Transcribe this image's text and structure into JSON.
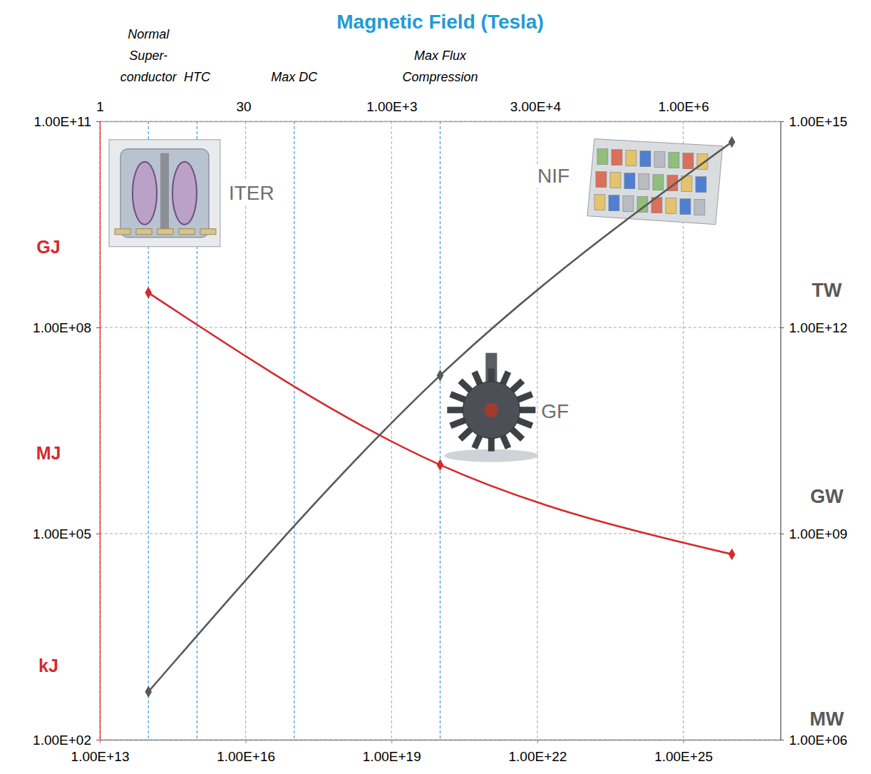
{
  "chart_data": {
    "type": "line",
    "title": "Magnetic Field (Tesla)",
    "log": true,
    "grid": true,
    "x": [
      100000000000000.0,
      1e+20,
      1e+26
    ],
    "xlim": [
      10000000000000.0,
      1e+27
    ],
    "xticks": [
      {
        "value": 10000000000000.0,
        "label": "1.00E+13"
      },
      {
        "value": 1e+16,
        "label": "1.00E+16"
      },
      {
        "value": 1e+19,
        "label": "1.00E+19"
      },
      {
        "value": 1e+22,
        "label": "1.00E+22"
      },
      {
        "value": 1e+25,
        "label": "1.00E+25"
      }
    ],
    "x2lim": [
      1,
      10000000.0
    ],
    "x2ticks": [
      1,
      30,
      {
        "value": 1000,
        "label": "1.00E+3"
      },
      {
        "value": 30000,
        "label": "3.00E+4"
      },
      {
        "value": 1000000,
        "label": "1.00E+6"
      }
    ],
    "ylim": [
      100,
      100000000000.0
    ],
    "yticks": [
      {
        "value": 100,
        "label": "1.00E+02"
      },
      {
        "value": 100000,
        "label": "1.00E+05"
      },
      {
        "value": 100000000,
        "label": "1.00E+08"
      },
      {
        "value": 100000000000.0,
        "label": "1.00E+11"
      }
    ],
    "y2lim": [
      1000000,
      1000000000000000.0
    ],
    "y2ticks": [
      {
        "value": 1000000,
        "label": "1.00E+06"
      },
      {
        "value": 1000000000,
        "label": "1.00E+09"
      },
      {
        "value": 1000000000000.0,
        "label": "1.00E+12"
      },
      {
        "value": 1000000000000000.0,
        "label": "1.00E+15"
      }
    ],
    "y_unit_labels": [
      {
        "value": 1500000000,
        "label": "GJ"
      },
      {
        "value": 1500000,
        "label": "MJ"
      },
      {
        "value": 1200,
        "label": "kJ"
      }
    ],
    "y2_unit_labels": [
      {
        "value": 3500000000000,
        "label": "TW"
      },
      {
        "value": 3500000000,
        "label": "GW"
      },
      {
        "value": 2000000,
        "label": "MW"
      }
    ],
    "reference_lines": [
      {
        "x": 100000000000000.0,
        "label": "Normal Super-conductor"
      },
      {
        "x": 1000000000000000.0,
        "label": "HTC"
      },
      {
        "x": 1e+17,
        "label": "Max DC"
      },
      {
        "x": 1e+20,
        "label": "Max Flux Compression"
      }
    ],
    "annotations": [
      {
        "text": "ITER",
        "x": 4500000000000000.0,
        "y": 9000000000
      },
      {
        "text": "NIF",
        "x": 1e+22,
        "y": 16000000000
      },
      {
        "text": "GF",
        "x": 1.2e+22,
        "y": 6000000
      }
    ],
    "series": [
      {
        "color": "#d42a30",
        "marker": "diamond",
        "values": [
          320000000,
          1000000,
          50000
        ]
      },
      {
        "color": "#595959",
        "marker": "diamond",
        "axis": "y2",
        "values": [
          5000000,
          200000000000,
          500000000000000
        ]
      }
    ]
  }
}
